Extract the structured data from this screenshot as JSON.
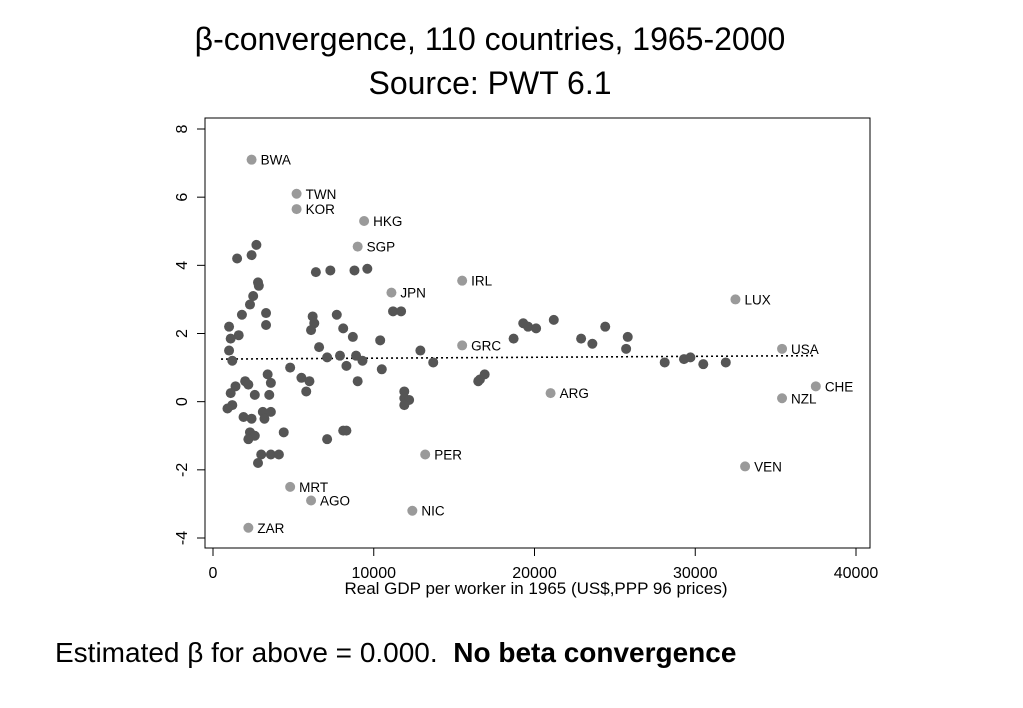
{
  "title_line1": "β-convergence, 110 countries, 1965-2000",
  "title_line2": "Source: PWT 6.1",
  "caption": {
    "text": "Estimated β for above = 0.000.",
    "emphasis": "No beta convergence"
  },
  "chart_data": {
    "type": "scatter",
    "xlabel": "Real GDP per worker in 1965 (US$,PPP 96 prices)",
    "ylabel": "",
    "xlim": [
      0,
      40000
    ],
    "ylim": [
      -4,
      8
    ],
    "xticks": [
      "0",
      "10000",
      "20000",
      "30000",
      "40000"
    ],
    "yticks": [
      "-4",
      "-2",
      "0",
      "2",
      "4",
      "6",
      "8"
    ],
    "grid": false,
    "colors": {
      "labeled": "#9a9a9a",
      "unlabeled": "#555555",
      "fit": "#000000"
    },
    "fit_line": {
      "style": "dotted",
      "x": [
        500,
        37500
      ],
      "y": [
        1.25,
        1.35
      ]
    },
    "labeled_points": [
      {
        "label": "BWA",
        "x": 2400,
        "y": 7.1
      },
      {
        "label": "TWN",
        "x": 5200,
        "y": 6.1
      },
      {
        "label": "KOR",
        "x": 5200,
        "y": 5.65
      },
      {
        "label": "HKG",
        "x": 9400,
        "y": 5.3
      },
      {
        "label": "SGP",
        "x": 9000,
        "y": 4.55
      },
      {
        "label": "IRL",
        "x": 15500,
        "y": 3.55
      },
      {
        "label": "JPN",
        "x": 11100,
        "y": 3.2
      },
      {
        "label": "LUX",
        "x": 32500,
        "y": 3.0
      },
      {
        "label": "GRC",
        "x": 15500,
        "y": 1.65
      },
      {
        "label": "USA",
        "x": 35400,
        "y": 1.55
      },
      {
        "label": "ARG",
        "x": 21000,
        "y": 0.25
      },
      {
        "label": "CHE",
        "x": 37500,
        "y": 0.45
      },
      {
        "label": "NZL",
        "x": 35400,
        "y": 0.1
      },
      {
        "label": "PER",
        "x": 13200,
        "y": -1.55
      },
      {
        "label": "VEN",
        "x": 33100,
        "y": -1.9
      },
      {
        "label": "MRT",
        "x": 4800,
        "y": -2.5
      },
      {
        "label": "AGO",
        "x": 6100,
        "y": -2.9
      },
      {
        "label": "NIC",
        "x": 12400,
        "y": -3.2
      },
      {
        "label": "ZAR",
        "x": 2200,
        "y": -3.7
      }
    ],
    "points": [
      [
        1500,
        4.2
      ],
      [
        2400,
        4.3
      ],
      [
        2700,
        4.6
      ],
      [
        2800,
        3.5
      ],
      [
        2850,
        3.4
      ],
      [
        2500,
        3.1
      ],
      [
        3300,
        2.6
      ],
      [
        2300,
        2.85
      ],
      [
        3300,
        2.25
      ],
      [
        1800,
        2.55
      ],
      [
        1600,
        1.95
      ],
      [
        1000,
        2.2
      ],
      [
        1100,
        1.85
      ],
      [
        1000,
        1.5
      ],
      [
        1200,
        1.2
      ],
      [
        2000,
        0.6
      ],
      [
        1400,
        0.45
      ],
      [
        2200,
        0.5
      ],
      [
        1100,
        0.25
      ],
      [
        2600,
        0.2
      ],
      [
        3400,
        0.8
      ],
      [
        3600,
        0.55
      ],
      [
        3500,
        0.2
      ],
      [
        1200,
        -0.1
      ],
      [
        900,
        -0.2
      ],
      [
        1900,
        -0.45
      ],
      [
        2400,
        -0.5
      ],
      [
        3100,
        -0.3
      ],
      [
        3200,
        -0.5
      ],
      [
        3600,
        -0.3
      ],
      [
        2300,
        -0.9
      ],
      [
        2600,
        -1.0
      ],
      [
        2200,
        -1.1
      ],
      [
        4400,
        -0.9
      ],
      [
        3000,
        -1.55
      ],
      [
        3600,
        -1.55
      ],
      [
        4100,
        -1.55
      ],
      [
        2800,
        -1.8
      ],
      [
        6400,
        3.8
      ],
      [
        7300,
        3.85
      ],
      [
        8800,
        3.85
      ],
      [
        9600,
        3.9
      ],
      [
        7700,
        2.55
      ],
      [
        6200,
        2.5
      ],
      [
        6300,
        2.3
      ],
      [
        6100,
        2.1
      ],
      [
        8100,
        2.15
      ],
      [
        8700,
        1.9
      ],
      [
        6600,
        1.6
      ],
      [
        7100,
        1.3
      ],
      [
        7900,
        1.35
      ],
      [
        8900,
        1.35
      ],
      [
        9300,
        1.2
      ],
      [
        8300,
        1.05
      ],
      [
        10400,
        1.8
      ],
      [
        11200,
        2.65
      ],
      [
        11700,
        2.65
      ],
      [
        12900,
        1.5
      ],
      [
        10500,
        0.95
      ],
      [
        13700,
        1.15
      ],
      [
        4800,
        1.0
      ],
      [
        5500,
        0.7
      ],
      [
        6000,
        0.6
      ],
      [
        5800,
        0.3
      ],
      [
        9000,
        0.6
      ],
      [
        7100,
        -1.1
      ],
      [
        8100,
        -0.85
      ],
      [
        8300,
        -0.85
      ],
      [
        11900,
        0.3
      ],
      [
        11900,
        0.1
      ],
      [
        12200,
        0.05
      ],
      [
        11900,
        -0.1
      ],
      [
        16500,
        0.6
      ],
      [
        16600,
        0.65
      ],
      [
        16900,
        0.8
      ],
      [
        18700,
        1.85
      ],
      [
        19300,
        2.3
      ],
      [
        19600,
        2.2
      ],
      [
        20100,
        2.15
      ],
      [
        21200,
        2.4
      ],
      [
        22900,
        1.85
      ],
      [
        23600,
        1.7
      ],
      [
        24400,
        2.2
      ],
      [
        25800,
        1.9
      ],
      [
        25700,
        1.55
      ],
      [
        28100,
        1.15
      ],
      [
        29300,
        1.25
      ],
      [
        29700,
        1.3
      ],
      [
        30500,
        1.1
      ],
      [
        31900,
        1.15
      ]
    ]
  }
}
